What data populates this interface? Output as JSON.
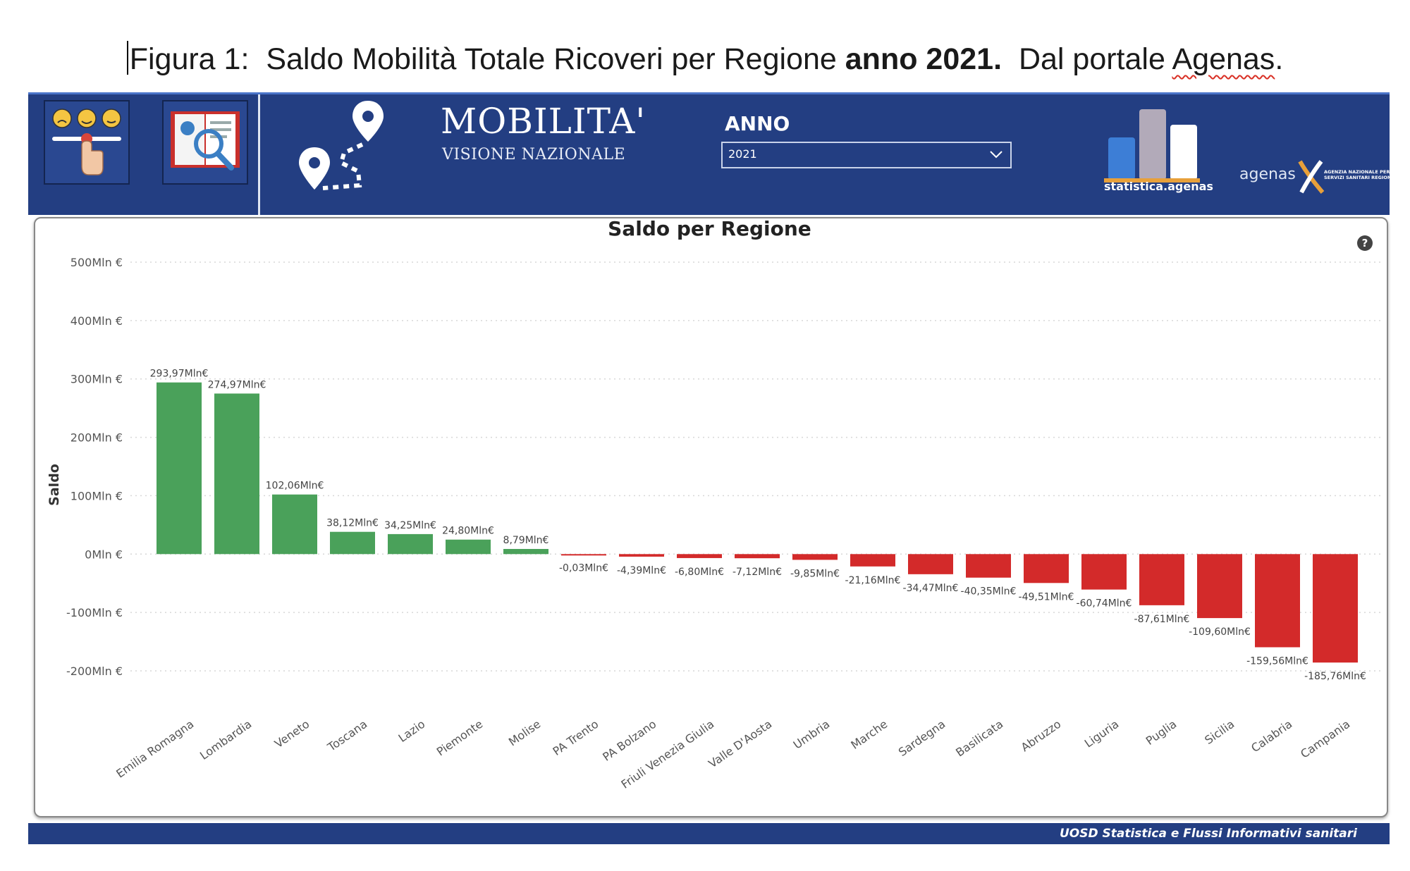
{
  "caption": {
    "prefix": "Figura 1:",
    "text_before_bold": "Saldo Mobilità Totale Ricoveri per Regione",
    "bold": "anno 2021.",
    "text_after_bold": "Dal portale",
    "underlined_word": "Agenas",
    "end": "."
  },
  "header": {
    "title": "MOBILITA'",
    "subtitle": "VISIONE NAZIONALE",
    "anno_label": "ANNO",
    "anno_selected": "2021",
    "statistica_label": "statistica.agenas",
    "agenas_label": "agenas",
    "agenas_full": "AGENZIA NAZIONALE PER I SERVIZI SANITARI REGIONALI",
    "icons": [
      "feedback-slider-icon",
      "search-report-icon",
      "route-map-icon",
      "chevron-down-icon",
      "bar-chart-logo-icon",
      "agenas-logo-icon"
    ]
  },
  "colors": {
    "header_bg": "#233e82",
    "positive": "#4aa15a",
    "negative": "#d32a2a",
    "grid": "#d7d7d7"
  },
  "footer": {
    "text": "UOSD Statistica e Flussi Informativi sanitari"
  },
  "help_glyph": "?",
  "chart_data": {
    "type": "bar",
    "title": "Saldo per Regione",
    "ylabel": "Saldo",
    "xlabel": "",
    "ylim": [
      -200,
      500
    ],
    "grid": true,
    "y_ticks": [
      500,
      400,
      300,
      200,
      100,
      0,
      -100,
      -200
    ],
    "y_tick_labels": [
      "500Mln €",
      "400Mln €",
      "300Mln €",
      "200Mln €",
      "100Mln €",
      "0Mln €",
      "-100Mln €",
      "-200Mln €"
    ],
    "categories": [
      "Emilia Romagna",
      "Lombardia",
      "Veneto",
      "Toscana",
      "Lazio",
      "Piemonte",
      "Molise",
      "PA Trento",
      "PA Bolzano",
      "Friuli Venezia Giulia",
      "Valle D'Aosta",
      "Umbria",
      "Marche",
      "Sardegna",
      "Basilicata",
      "Abruzzo",
      "Liguria",
      "Puglia",
      "Sicilia",
      "Calabria",
      "Campania"
    ],
    "values": [
      293.97,
      274.97,
      102.06,
      38.12,
      34.25,
      24.8,
      8.79,
      -0.03,
      -4.39,
      -6.8,
      -7.12,
      -9.85,
      -21.16,
      -34.47,
      -40.35,
      -49.51,
      -60.74,
      -87.61,
      -109.6,
      -159.56,
      -185.76
    ],
    "data_labels": [
      "293,97Mln€",
      "274,97Mln€",
      "102,06Mln€",
      "38,12Mln€",
      "34,25Mln€",
      "24,80Mln€",
      "8,79Mln€",
      "-0,03Mln€",
      "-4,39Mln€",
      "-6,80Mln€",
      "-7,12Mln€",
      "-9,85Mln€",
      "-21,16Mln€",
      "-34,47Mln€",
      "-40,35Mln€",
      "-49,51Mln€",
      "-60,74Mln€",
      "-87,61Mln€",
      "-109,60Mln€",
      "-159,56Mln€",
      "-185,76Mln€"
    ]
  }
}
